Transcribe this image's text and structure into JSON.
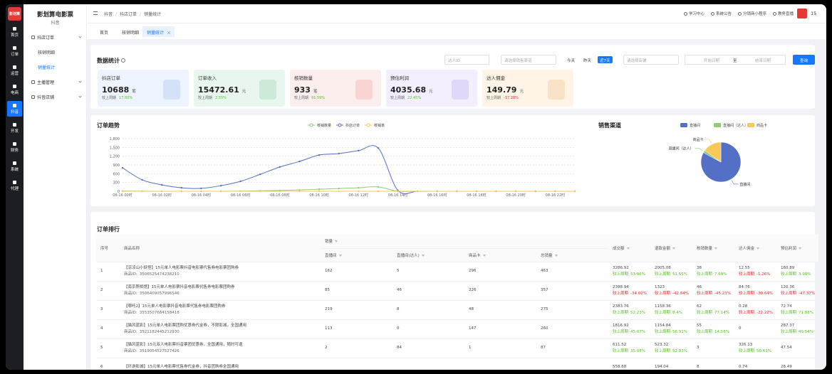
{
  "sidebar": {
    "logo": "影划算",
    "items": [
      "首页",
      "订单",
      "运营",
      "电商",
      "抖音",
      "开发",
      "财务",
      "系统",
      "代理"
    ]
  },
  "nav": {
    "title": "影划算电影票",
    "subtitle": "抖音",
    "groups": [
      {
        "label": "抖店订单",
        "items": [
          "核销明细",
          "销量统计"
        ]
      },
      {
        "label": "主播管理"
      },
      {
        "label": "抖音店铺"
      }
    ]
  },
  "header": {
    "breadcrumb": [
      "抖音",
      "抖店订单",
      "销量统计"
    ],
    "links": [
      "学习中心",
      "系统公告",
      "分销商小程序",
      "教务直播"
    ],
    "user": "15"
  },
  "tabs": [
    "首页",
    "核销明细",
    "销量统计"
  ],
  "stats": {
    "title": "数据统计",
    "filters": {
      "talent_id": "达人ID",
      "channel": "请选择销售渠道",
      "ranges": [
        "今天",
        "昨天",
        "近7天"
      ],
      "shop": "请选择店铺",
      "start": "开始日期",
      "to": "至",
      "end": "结束日期",
      "search": "查询"
    },
    "compare_label": "较上周期",
    "cards": [
      {
        "label": "抖店订单",
        "value": "10688",
        "unit": "笔",
        "change": "17.60%"
      },
      {
        "label": "订单收入",
        "value": "15472.61",
        "unit": "元",
        "change": "2.55%"
      },
      {
        "label": "核销数量",
        "value": "933",
        "unit": "笔",
        "change": "91.59%"
      },
      {
        "label": "预估利润",
        "value": "4035.68",
        "unit": "元",
        "change": "22.45%"
      },
      {
        "label": "达人佣金",
        "value": "149.79",
        "unit": "元",
        "change": "-17.28%"
      }
    ]
  },
  "chart_data": [
    {
      "type": "line",
      "title": "订单趋势",
      "categories": [
        "08-16 00时",
        null,
        "08-16 02时",
        null,
        "08-16 04时",
        null,
        "08-16 06时",
        null,
        "08-16 08时",
        null,
        "08-16 10时",
        null,
        "08-16 12时",
        null,
        "08-16 14时",
        null,
        "08-16 16时",
        null,
        "08-16 18时",
        null,
        "08-16 20时",
        null,
        "08-16 22时",
        null
      ],
      "series": [
        {
          "name": "核销数量",
          "color": "#91cc75",
          "values": [
            10,
            5,
            0,
            0,
            0,
            0,
            5,
            15,
            30,
            45,
            70,
            95,
            120,
            150,
            0,
            0,
            0,
            0,
            0,
            0,
            0,
            0,
            0,
            0
          ]
        },
        {
          "name": "抖店订单",
          "color": "#5470c6",
          "values": [
            800,
            390,
            220,
            120,
            100,
            190,
            340,
            580,
            830,
            1020,
            1240,
            1290,
            1390,
            1480,
            30,
            0,
            0,
            0,
            0,
            0,
            0,
            0,
            0,
            0
          ]
        },
        {
          "name": "核销率",
          "color": "#fac858",
          "values": [
            0,
            0,
            0,
            0,
            0,
            0,
            0,
            0,
            0,
            0,
            0,
            0,
            0,
            0,
            0,
            0,
            0,
            0,
            0,
            0,
            0,
            0,
            0,
            0
          ]
        }
      ],
      "ylim": [
        0,
        1800
      ],
      "yticks": [
        0,
        300,
        600,
        900,
        {
          "value": 1200,
          "label": "1,200"
        },
        {
          "value": 1500,
          "label": "1,500"
        },
        {
          "value": 1800,
          "label": "1,800"
        }
      ],
      "grid": true,
      "legend": "top"
    },
    {
      "type": "pie",
      "title": "销售渠道",
      "categories": [
        "直播间",
        "直播间（达人）",
        "商品卡"
      ],
      "values": [
        83,
        2,
        15
      ],
      "colors": [
        "#5470c6",
        "#91cc75",
        "#fac858"
      ],
      "legend": "top"
    }
  ],
  "table": {
    "title": "订单排行",
    "product_id_label": "商品ID:",
    "headers": {
      "no": "序号",
      "name": "商品名称",
      "sales": "销量",
      "sales_sub": [
        "直播间",
        "直播间(达人)",
        "商品卡",
        "总销量"
      ],
      "metrics": [
        "成交额",
        "退款金额",
        "核销数量",
        "达人佣金",
        "预估利润"
      ]
    },
    "rows": [
      {
        "no": "1",
        "name": "【凉凉山小妖怪】15元单人电影票抖音电影票代售券电影票团购券",
        "product_id": "3506525474238210",
        "sales": [
          "162",
          "5",
          "296",
          "463"
        ],
        "metrics": [
          {
            "value": "3286.92",
            "change": "53.96%"
          },
          {
            "value": "2005.08",
            "change": "51.55%"
          },
          {
            "value": "38",
            "change": "7.69%"
          },
          {
            "value": "12.55",
            "change": "-1.26%"
          },
          {
            "value": "160.89",
            "change": "3.98%"
          }
        ]
      },
      {
        "no": "2",
        "name": "【南京照相馆】15元单人电影票抖音电影票代售券电影票团购券",
        "product_id": "3506409057996546",
        "sales": [
          "85",
          "46",
          "226",
          "357"
        ],
        "metrics": [
          {
            "value": "2398.94",
            "change": "-34.02%"
          },
          {
            "value": "1323",
            "change": "-42.84%"
          },
          {
            "value": "46",
            "change": "-45.23%"
          },
          {
            "value": "84.76",
            "change": "-30.64%"
          },
          {
            "value": "120.36",
            "change": "-47.37%"
          }
        ]
      },
      {
        "no": "3",
        "name": "【哪吒2】15元单人电影票抖音电影票代售券电影票团购券",
        "product_id": "3553507684158418",
        "sales": [
          "219",
          "8",
          "48",
          "275"
        ],
        "metrics": [
          {
            "value": "2383.76",
            "change": "52.23%"
          },
          {
            "value": "1158.36",
            "change": "8.4%"
          },
          {
            "value": "62",
            "change": "77.14%"
          },
          {
            "value": "0.28",
            "change": "-22.22%"
          },
          {
            "value": "72.74",
            "change": "71.88%"
          }
        ]
      },
      {
        "no": "4",
        "name": "【猫风蓝影】15元单人电影票团购优惠券代金券，不限影城，全国通用",
        "product_id": "3521182445212930",
        "sales": [
          "113",
          "0",
          "147",
          "260"
        ],
        "metrics": [
          {
            "value": "1816.92",
            "change": "45.07%"
          },
          {
            "value": "1154.84",
            "change": "56.91%"
          },
          {
            "value": "55",
            "change": "14.58%"
          },
          {
            "value": "0"
          },
          {
            "value": "287.37",
            "change": "49.54%"
          }
        ]
      },
      {
        "no": "5",
        "name": "【猫风蓝影】15元双人电影票抖音票团优惠券，全国通用，随时可退",
        "product_id": "3519054527527426",
        "sales": [
          "2",
          "84",
          "1",
          "87"
        ],
        "metrics": [
          {
            "value": "611.52",
            "change": "35.08%"
          },
          {
            "value": "523.32",
            "change": "52.83%"
          },
          {
            "value": "3"
          },
          {
            "value": "326.13",
            "change": "50.63%"
          },
          {
            "value": "47.54"
          }
        ]
      },
      {
        "no": "6",
        "name": "【环游影城】15元单人电影票代售券代金券，抖音团购券全国通用",
        "metrics": [
          {
            "value": "558.68"
          },
          {
            "value": "194.04"
          },
          {
            "value": "8"
          },
          {
            "value": "0.74"
          },
          {
            "value": "28.49"
          }
        ]
      }
    ]
  }
}
